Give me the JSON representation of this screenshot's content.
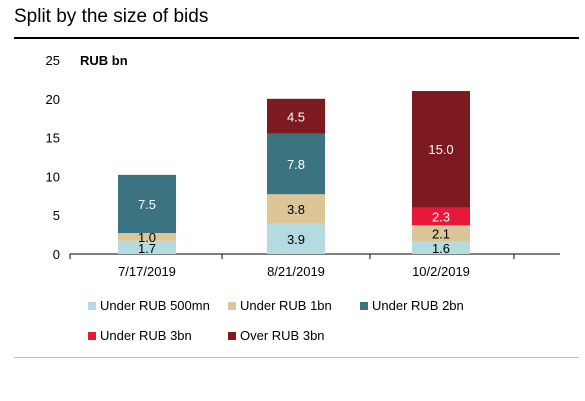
{
  "title": "Split by the size of bids",
  "chart_data": {
    "type": "bar",
    "stacked": true,
    "ylabel": "RUB bn",
    "ylim": [
      0,
      25
    ],
    "yticks": [
      0,
      5,
      10,
      15,
      20,
      25
    ],
    "categories": [
      "7/17/2019",
      "8/21/2019",
      "10/2/2019"
    ],
    "legend_position": "bottom",
    "series": [
      {
        "name": "Under RUB 500mn",
        "color": "#b3dbe0",
        "values": [
          1.7,
          3.9,
          1.6
        ],
        "labels": [
          "1.7",
          "3.9",
          "1.6"
        ]
      },
      {
        "name": "Under RUB 1bn",
        "color": "#dcc596",
        "values": [
          1.0,
          3.8,
          2.1
        ],
        "labels": [
          "1.0",
          "3.8",
          "2.1"
        ]
      },
      {
        "name": "Under RUB 2bn",
        "color": "#3b7480",
        "values": [
          7.5,
          7.8,
          0
        ],
        "labels": [
          "7.5",
          "7.8",
          ""
        ]
      },
      {
        "name": "Under RUB 3bn",
        "color": "#e8183a",
        "values": [
          0,
          0,
          2.3
        ],
        "labels": [
          "",
          "",
          "2.3"
        ]
      },
      {
        "name": "Over RUB 3bn",
        "color": "#7c1a20",
        "values": [
          0,
          4.5,
          15.0
        ],
        "labels": [
          "",
          "4.5",
          "15.0"
        ]
      }
    ]
  }
}
